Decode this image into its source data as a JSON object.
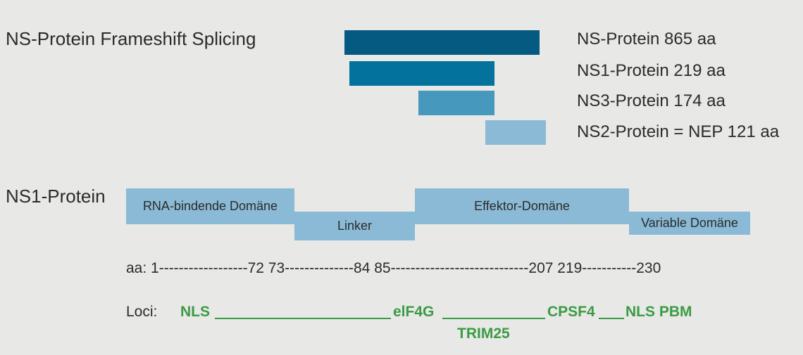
{
  "colors": {
    "background": "#e8e8e6",
    "ns": "#055a82",
    "ns1": "#03739e",
    "ns3": "#4798bd",
    "ns2": "#8bbad6",
    "domain": "#8bbad6",
    "loci_green": "#3b9b45"
  },
  "top": {
    "title": "NS-Protein Frameshift Splicing",
    "proteins": [
      {
        "label": "NS-Protein 865 aa"
      },
      {
        "label": "NS1-Protein 219 aa"
      },
      {
        "label": "NS3-Protein 174 aa"
      },
      {
        "label": "NS2-Protein = NEP 121 aa"
      }
    ]
  },
  "ns1": {
    "title": "NS1-Protein",
    "domains": [
      {
        "label": "RNA-bindende Domäne"
      },
      {
        "label": "Linker"
      },
      {
        "label": "Effektor-Domäne"
      },
      {
        "label": "Variable Domäne"
      }
    ],
    "aa_line": "aa: 1------------------72 73--------------84 85----------------------------207 219-----------230"
  },
  "loci": {
    "label": "Loci:",
    "items": [
      "NLS",
      "elF4G",
      "CPSF4",
      "NLS PBM",
      "TRIM25"
    ]
  }
}
